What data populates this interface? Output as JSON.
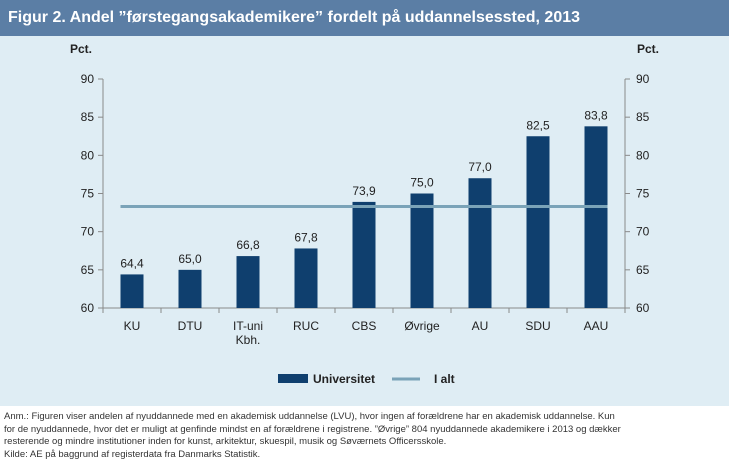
{
  "figure": {
    "title": "Figur 2. Andel ”førstegangsakademikere” fordelt på uddannelsessted, 2013"
  },
  "notes": {
    "line1": "Anm.: Figuren viser andelen af nyuddannede med en akademisk uddannelse (LVU), hvor ingen af forældrene har en akademisk uddannelse. Kun",
    "line2": "for de nyuddannede, hvor det er muligt at genfinde mindst en af forældrene i registrene. ”Øvrige” 804 nyuddannede akademikere i 2013 og dækker",
    "line3": "resterende og mindre institutioner inden for kunst, arkitektur, skuespil, musik og Søværnets Officersskole.",
    "line4": "Kilde: AE på baggrund af registerdata fra Danmarks Statistik."
  },
  "chart_data": {
    "type": "bar",
    "title": "Figur 2. Andel ”førstegangsakademikere” fordelt på uddannelsessted, 2013",
    "ylabel_left": "Pct.",
    "ylabel_right": "Pct.",
    "ylim": [
      60,
      90
    ],
    "yticks": [
      60,
      65,
      70,
      75,
      80,
      85,
      90
    ],
    "grid": false,
    "legend_position": "bottom",
    "categories": [
      "KU",
      "DTU",
      "IT-uni Kbh.",
      "RUC",
      "CBS",
      "Øvrige",
      "AU",
      "SDU",
      "AAU"
    ],
    "category_lines": [
      [
        "KU"
      ],
      [
        "DTU"
      ],
      [
        "IT-uni",
        "Kbh."
      ],
      [
        "RUC"
      ],
      [
        "CBS"
      ],
      [
        "Øvrige"
      ],
      [
        "AU"
      ],
      [
        "SDU"
      ],
      [
        "AAU"
      ]
    ],
    "series": [
      {
        "name": "Universitet",
        "type": "bar",
        "color": "#0f3f6e",
        "values": [
          64.4,
          65.0,
          66.8,
          67.8,
          73.9,
          75.0,
          77.0,
          82.5,
          83.8
        ],
        "labels": [
          "64,4",
          "65,0",
          "66,8",
          "67,8",
          "73,9",
          "75,0",
          "77,0",
          "82,5",
          "83,8"
        ]
      },
      {
        "name": "I alt",
        "type": "line",
        "color": "#7aa3b8",
        "value": 73.3
      }
    ]
  }
}
